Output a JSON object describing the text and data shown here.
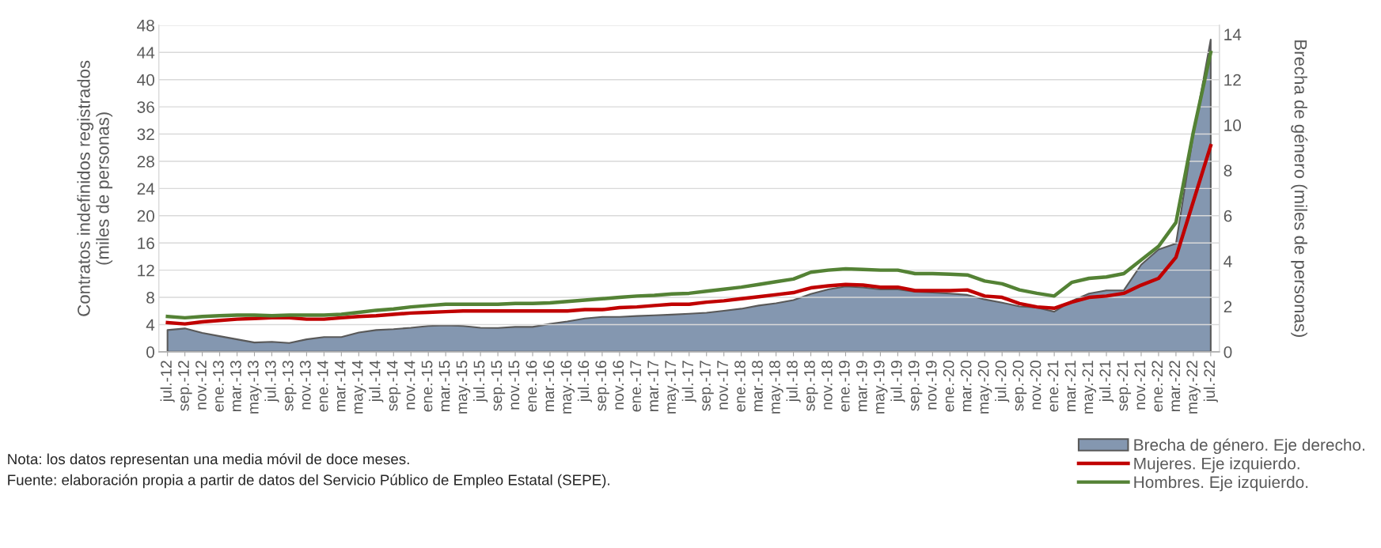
{
  "chart_data": {
    "type": "line",
    "ylabel": "Contratos indefinidos registrados\n(miles de personas)",
    "y2label": "Brecha de género (miles de personas)",
    "categories": [
      "jul.-12",
      "sep.-12",
      "nov.-12",
      "ene.-13",
      "mar.-13",
      "may.-13",
      "jul.-13",
      "sep.-13",
      "nov.-13",
      "ene.-14",
      "mar.-14",
      "may.-14",
      "jul.-14",
      "sep.-14",
      "nov.-14",
      "ene.-15",
      "mar.-15",
      "may.-15",
      "jul.-15",
      "sep.-15",
      "nov.-15",
      "ene.-16",
      "mar.-16",
      "may.-16",
      "jul.-16",
      "sep.-16",
      "nov.-16",
      "ene.-17",
      "mar.-17",
      "may.-17",
      "jul.-17",
      "sep.-17",
      "nov.-17",
      "ene.-18",
      "mar.-18",
      "may.-18",
      "jul.-18",
      "sep.-18",
      "nov.-18",
      "ene.-19",
      "mar.-19",
      "may.-19",
      "jul.-19",
      "sep.-19",
      "nov.-19",
      "ene.-20",
      "mar.-20",
      "may.-20",
      "jul.-20",
      "sep.-20",
      "nov.-20",
      "ene.-21",
      "mar.-21",
      "may.-21",
      "jul.-21",
      "sep.-21",
      "nov.-21",
      "ene.-22",
      "mar.-22",
      "may.-22",
      "jul.-22"
    ],
    "series": [
      {
        "name": "Brecha de género. Eje derecho.",
        "type": "area",
        "axis": "y2",
        "color": "#8497b0",
        "values": [
          0.96,
          1.03,
          0.83,
          0.69,
          0.55,
          0.41,
          0.44,
          0.39,
          0.55,
          0.65,
          0.65,
          0.85,
          0.96,
          1.0,
          1.06,
          1.14,
          1.17,
          1.14,
          1.06,
          1.05,
          1.1,
          1.1,
          1.23,
          1.34,
          1.47,
          1.54,
          1.54,
          1.58,
          1.61,
          1.64,
          1.68,
          1.72,
          1.81,
          1.9,
          2.04,
          2.14,
          2.28,
          2.55,
          2.75,
          2.88,
          2.84,
          2.75,
          2.75,
          2.65,
          2.61,
          2.57,
          2.51,
          2.31,
          2.17,
          2.0,
          1.95,
          1.77,
          2.24,
          2.57,
          2.71,
          2.71,
          3.84,
          4.51,
          4.77,
          9.57,
          13.77
        ]
      },
      {
        "name": "Mujeres. Eje izquierdo.",
        "color": "#c00000",
        "values": [
          4.3,
          4.1,
          4.4,
          4.6,
          4.8,
          4.9,
          5.0,
          5.0,
          4.8,
          4.8,
          5.0,
          5.2,
          5.3,
          5.5,
          5.7,
          5.8,
          5.9,
          6.0,
          6.0,
          6.0,
          6.0,
          6.0,
          6.0,
          6.0,
          6.2,
          6.2,
          6.5,
          6.6,
          6.8,
          7.0,
          7.0,
          7.3,
          7.5,
          7.8,
          8.1,
          8.4,
          8.7,
          9.4,
          9.7,
          9.9,
          9.8,
          9.5,
          9.5,
          9.0,
          9.0,
          9.0,
          9.1,
          8.2,
          8.0,
          7.1,
          6.6,
          6.4,
          7.3,
          8.0,
          8.2,
          8.6,
          9.8,
          10.8,
          13.9,
          22.1,
          30.3
        ]
      },
      {
        "name": "Hombres. Eje izquierdo.",
        "color": "#548235",
        "values": [
          5.2,
          5.0,
          5.2,
          5.3,
          5.4,
          5.4,
          5.3,
          5.4,
          5.4,
          5.4,
          5.5,
          5.8,
          6.1,
          6.3,
          6.6,
          6.8,
          7.0,
          7.0,
          7.0,
          7.0,
          7.1,
          7.1,
          7.2,
          7.4,
          7.6,
          7.8,
          8.0,
          8.2,
          8.3,
          8.5,
          8.6,
          8.9,
          9.2,
          9.5,
          9.9,
          10.3,
          10.7,
          11.7,
          12.0,
          12.2,
          12.1,
          12.0,
          12.0,
          11.5,
          11.5,
          11.4,
          11.3,
          10.4,
          10.0,
          9.1,
          8.6,
          8.2,
          10.2,
          10.8,
          11.0,
          11.5,
          13.5,
          15.5,
          19.0,
          32.3,
          44.0
        ]
      }
    ],
    "ylim": [
      0,
      48
    ],
    "yticks": [
      0,
      4,
      8,
      12,
      16,
      20,
      24,
      28,
      32,
      36,
      40,
      44,
      48
    ],
    "y2lim": [
      0,
      14.4
    ],
    "y2ticks": [
      0,
      2,
      4,
      6,
      8,
      10,
      12,
      14
    ],
    "grid": "y",
    "legend": "bottom right",
    "marker": "none",
    "line_style": "solid",
    "annotations": [
      "Nota: los datos representan una media móvil de doce meses.",
      "Fuente: elaboración propia a partir de datos del Servicio Público de Empleo Estatal (SEPE)."
    ]
  }
}
